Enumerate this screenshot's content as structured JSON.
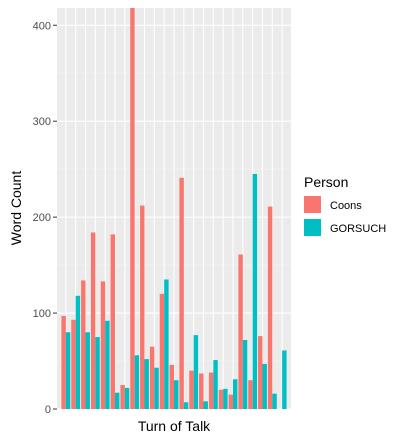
{
  "chart_data": {
    "type": "bar",
    "title": "",
    "xlabel": "Turn of Talk",
    "ylabel": "Word Count",
    "ylim": [
      0,
      418
    ],
    "yticks": [
      0,
      100,
      200,
      300,
      400
    ],
    "grid": true,
    "legend": {
      "title": "Person",
      "position": "right"
    },
    "series": [
      {
        "name": "Coons",
        "color": "#F8766D",
        "values": [
          97,
          93,
          134,
          184,
          133,
          182,
          25,
          418,
          212,
          65,
          120,
          46,
          241,
          40,
          37,
          38,
          20,
          15,
          161,
          30,
          76,
          211
        ]
      },
      {
        "name": "GORSUCH",
        "color": "#00BFC4",
        "values": [
          80,
          118,
          80,
          75,
          92,
          17,
          22,
          56,
          52,
          43,
          135,
          30,
          7,
          77,
          8,
          51,
          21,
          31,
          72,
          245,
          47,
          16,
          61
        ]
      }
    ]
  }
}
